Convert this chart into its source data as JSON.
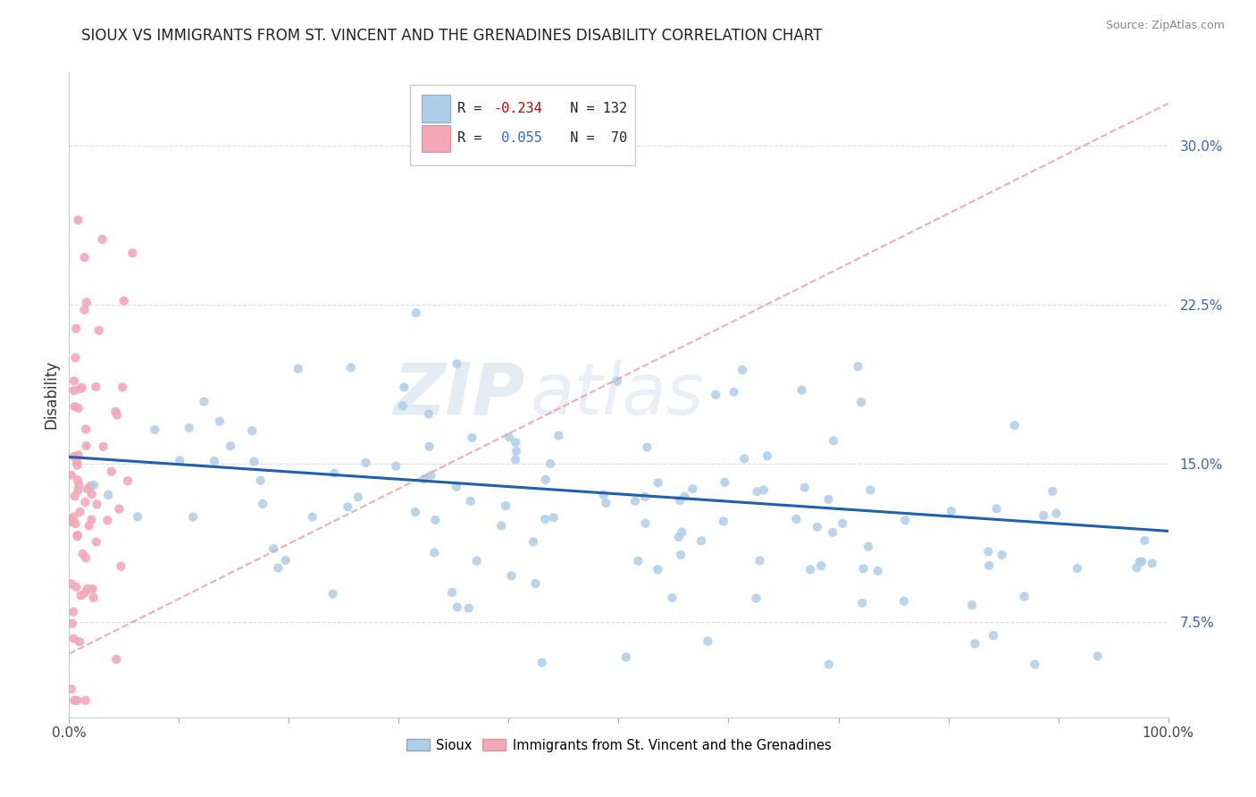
{
  "title": "SIOUX VS IMMIGRANTS FROM ST. VINCENT AND THE GRENADINES DISABILITY CORRELATION CHART",
  "source": "Source: ZipAtlas.com",
  "ylabel": "Disability",
  "yticks": [
    "7.5%",
    "15.0%",
    "22.5%",
    "30.0%"
  ],
  "ytick_vals": [
    0.075,
    0.15,
    0.225,
    0.3
  ],
  "xlim": [
    0.0,
    1.0
  ],
  "ylim": [
    0.03,
    0.335
  ],
  "color_sioux": "#AECDE8",
  "color_svg": "#F4A7B9",
  "color_sioux_line": "#1F5FAD",
  "color_svg_line": "#E8A0A8",
  "sioux_line_start_y": 0.153,
  "sioux_line_end_y": 0.118,
  "svg_line_start_y": 0.06,
  "svg_line_end_y": 0.32
}
